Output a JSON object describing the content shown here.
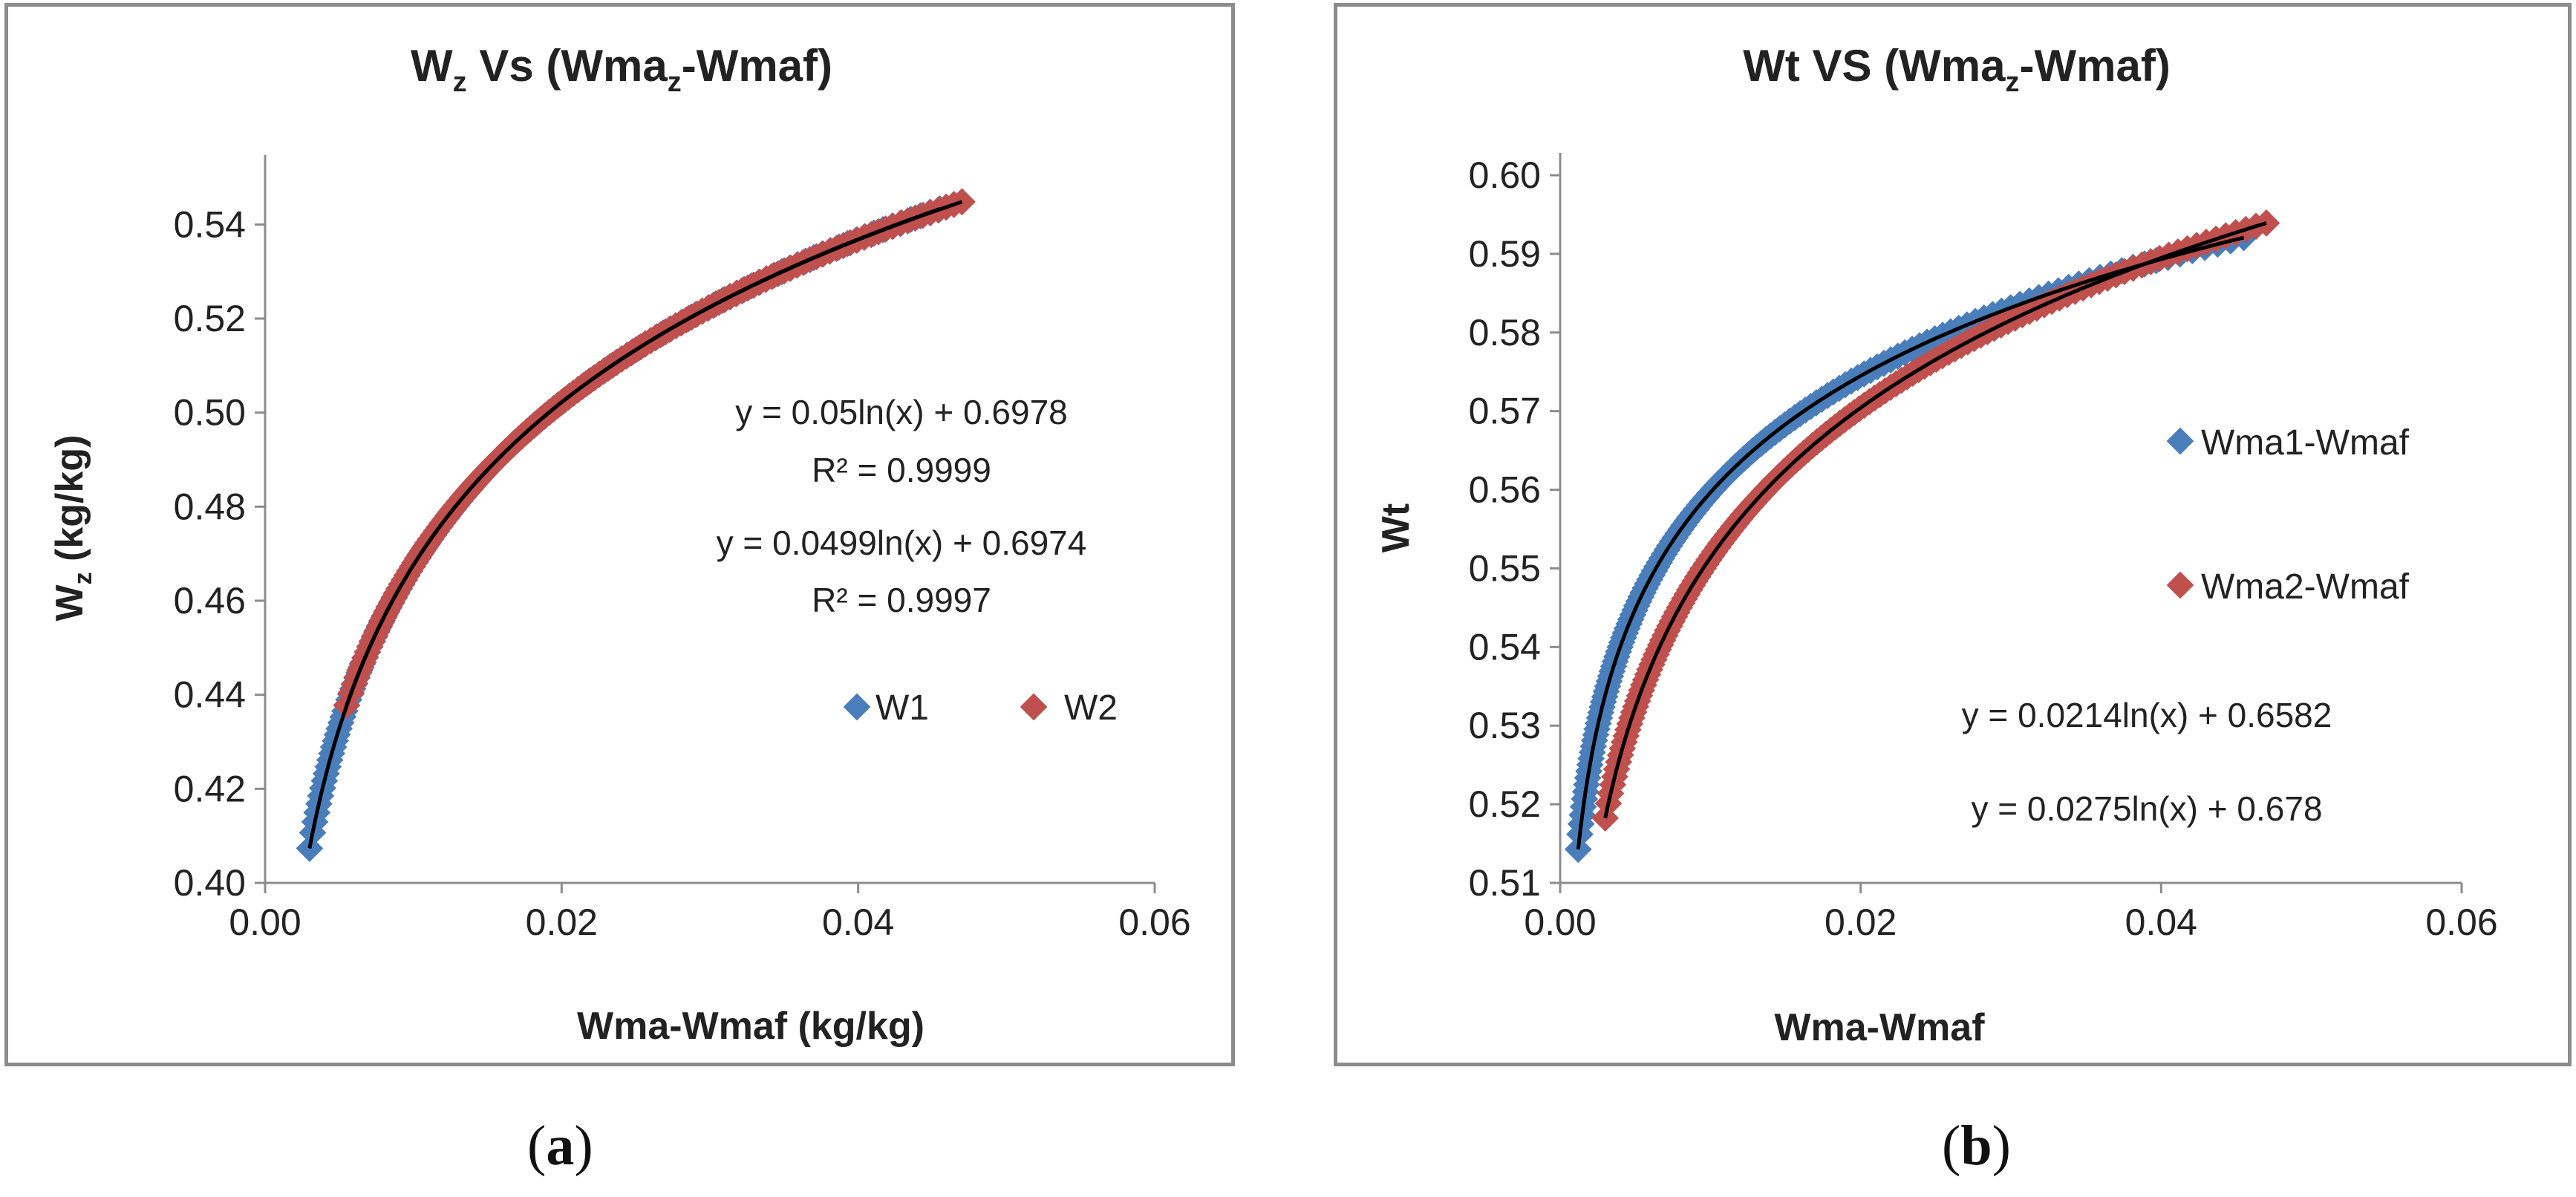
{
  "chart_data": [
    {
      "panel_label": "a",
      "type": "scatter",
      "title_main": "W",
      "title_sub": "z",
      "title_rest": " Vs (Wma",
      "title_sub2": "z",
      "title_end": "-Wmaf)",
      "xlabel": "Wma-Wmaf (kg/kg)",
      "ylabel_main": "W",
      "ylabel_sub": "z",
      "ylabel_rest": " (kg/kg)",
      "xlim": [
        0,
        0.06
      ],
      "ylim": [
        0.4,
        0.55
      ],
      "xticks": [
        "0.00",
        "0.02",
        "0.04",
        "0.06"
      ],
      "yticks": [
        "0.40",
        "0.42",
        "0.44",
        "0.46",
        "0.48",
        "0.50",
        "0.52",
        "0.54"
      ],
      "series": [
        {
          "name": "W1",
          "color": "#4a7ebb",
          "x_range": [
            0.003,
            0.0455
          ],
          "fit": {
            "a": 0.05,
            "b": 0.6978
          }
        },
        {
          "name": "W2",
          "color": "#c0504d",
          "x_range": [
            0.0055,
            0.047
          ],
          "fit": {
            "a": 0.0499,
            "b": 0.6974
          }
        }
      ],
      "trendline_color": "#000000",
      "annotations": [
        "y = 0.05ln(x) + 0.6978",
        "R² = 0.9999",
        "y = 0.0499ln(x) + 0.6974",
        "R² = 0.9997"
      ],
      "legend_position": "right"
    },
    {
      "panel_label": "b",
      "type": "scatter",
      "title_main": "Wt VS (Wma",
      "title_sub": "z",
      "title_rest": "-Wmaf)",
      "xlabel": "Wma-Wmaf",
      "ylabel": "Wt",
      "xlim": [
        0,
        0.06
      ],
      "ylim": [
        0.51,
        0.6
      ],
      "xticks": [
        "0.00",
        "0.02",
        "0.04",
        "0.06"
      ],
      "yticks": [
        "0.51",
        "0.52",
        "0.53",
        "0.54",
        "0.55",
        "0.56",
        "0.57",
        "0.58",
        "0.59",
        "0.60"
      ],
      "series": [
        {
          "name": "Wma1-Wmaf",
          "color": "#4a7ebb",
          "x_range": [
            0.0012,
            0.0455
          ],
          "fit": {
            "a": 0.0214,
            "b": 0.6582
          }
        },
        {
          "name": "Wma2-Wmaf",
          "color": "#c0504d",
          "x_range": [
            0.003,
            0.047
          ],
          "fit": {
            "a": 0.0275,
            "b": 0.678
          }
        }
      ],
      "trendline_color": "#000000",
      "annotations": [
        "y = 0.0214ln(x) + 0.6582",
        "y = 0.0275ln(x) + 0.678"
      ],
      "legend_position": "right"
    }
  ]
}
